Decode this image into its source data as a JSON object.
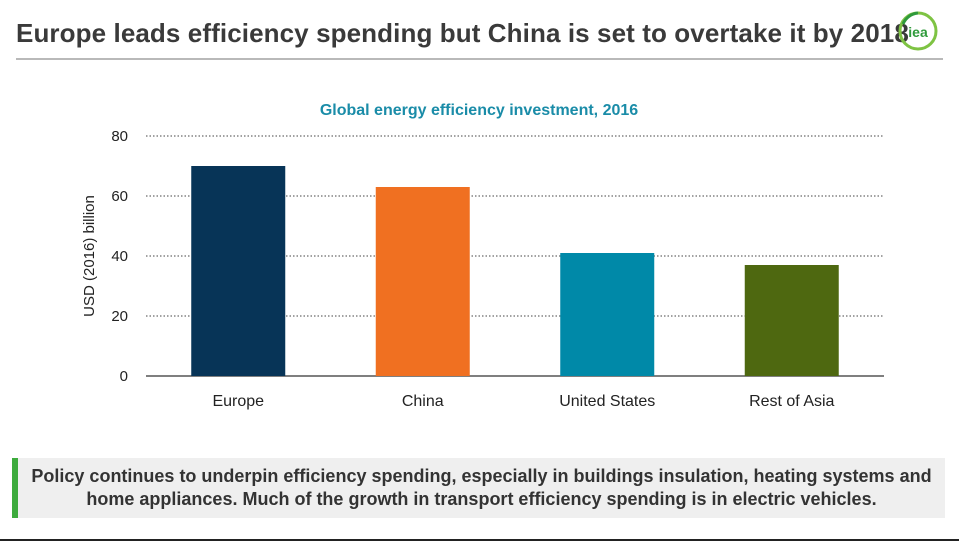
{
  "header": {
    "title": "Europe leads efficiency spending but China is set to overtake it by 2018",
    "logo_text": "iea"
  },
  "footer": {
    "text": "Policy continues to underpin efficiency spending, especially in buildings insulation, heating systems and home appliances. Much of the growth in transport efficiency spending is in electric vehicles."
  },
  "colors": {
    "accent_green": "#3dab3d",
    "title_teal": "#1a8ca8"
  },
  "chart_data": {
    "type": "bar",
    "title": "Global energy efficiency investment, 2016",
    "xlabel": "",
    "ylabel": "USD (2016) billion",
    "ylim": [
      0,
      80
    ],
    "yticks": [
      0,
      20,
      40,
      60,
      80
    ],
    "grid": true,
    "categories": [
      "Europe",
      "China",
      "United States",
      "Rest of Asia"
    ],
    "values": [
      70,
      63,
      41,
      37
    ],
    "bar_colors": [
      "#073457",
      "#f07021",
      "#0089a8",
      "#4e6810"
    ]
  }
}
